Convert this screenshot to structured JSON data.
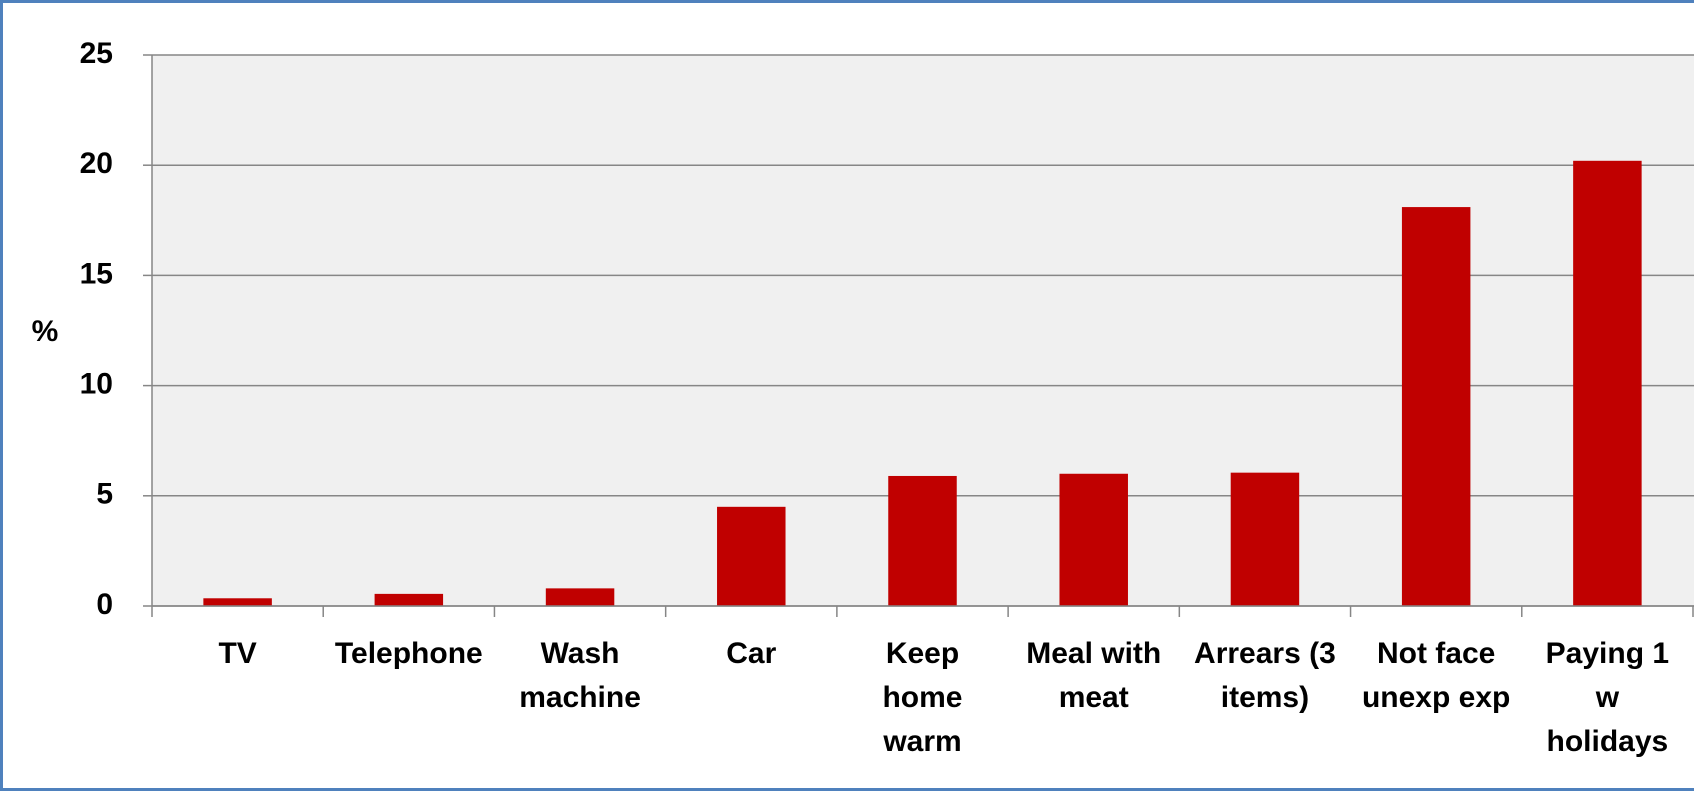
{
  "chart_data": {
    "type": "bar",
    "y_label": "%",
    "categories": [
      "TV",
      "Telephone",
      "Wash machine",
      "Car",
      "Keep home warm",
      "Meal with meat",
      "Arrears (3 items)",
      "Not face unexp exp",
      "Paying 1 w holidays"
    ],
    "values": [
      0.35,
      0.55,
      0.8,
      4.5,
      5.9,
      6.0,
      6.05,
      18.1,
      20.2
    ],
    "color": "#c00000",
    "ylim": [
      0,
      25
    ],
    "yticks": [
      0,
      5,
      10,
      15,
      20,
      25
    ],
    "grid": true
  }
}
